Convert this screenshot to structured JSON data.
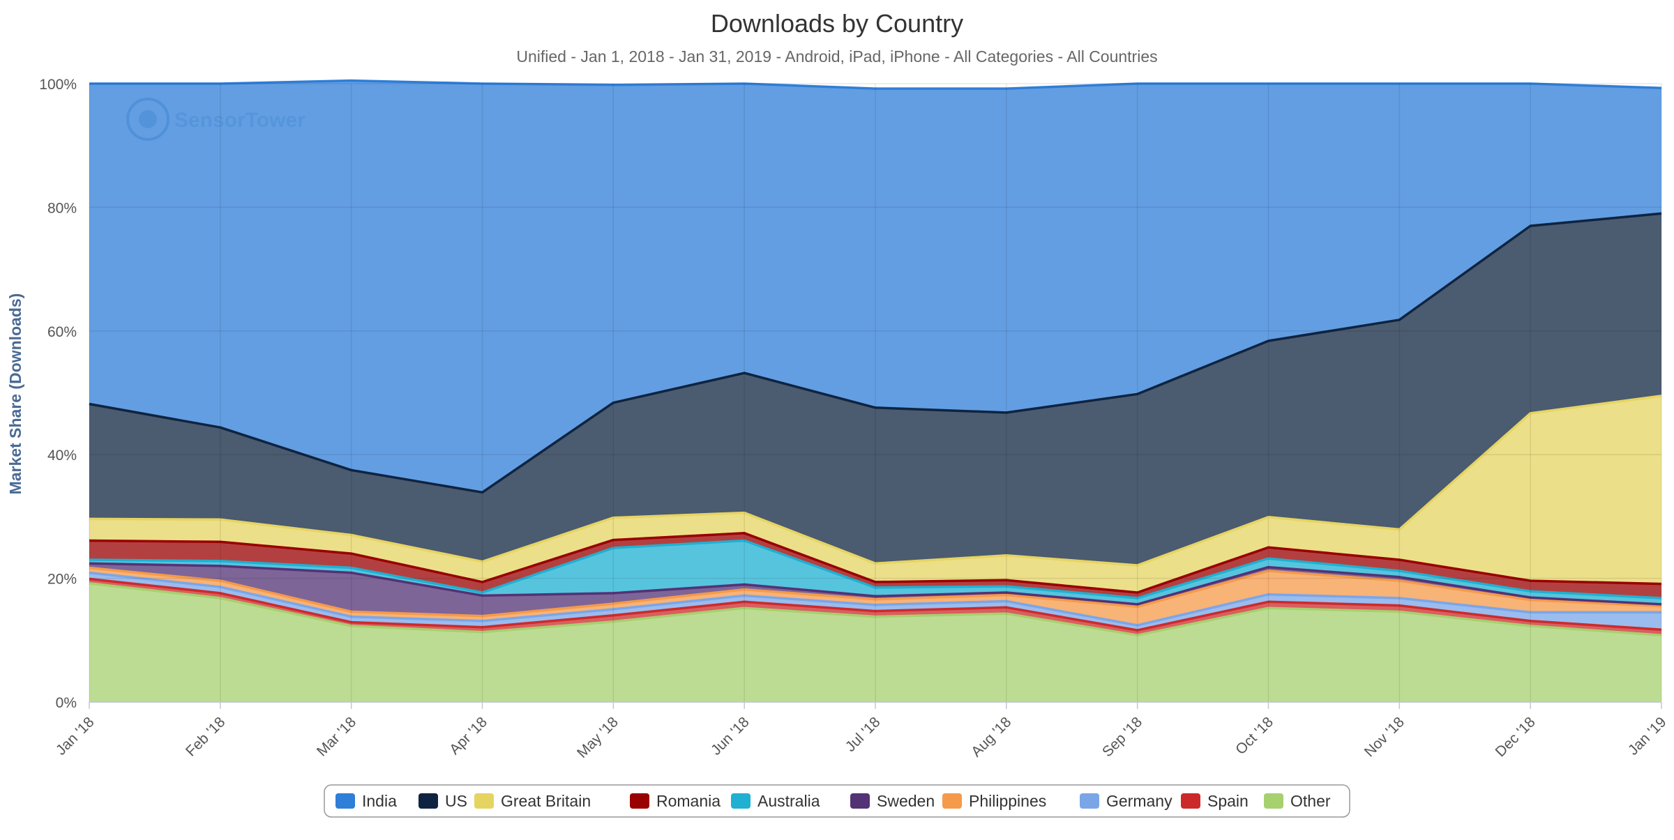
{
  "chart_data": {
    "type": "area",
    "stacked": "percent",
    "title": "Downloads by Country",
    "subtitle": "Unified - Jan 1, 2018 - Jan 31, 2019 - Android, iPad, iPhone - All Categories - All Countries",
    "xlabel": "",
    "ylabel": "Market Share (Downloads)",
    "ylim": [
      0,
      100
    ],
    "y_ticks": [
      "0%",
      "20%",
      "40%",
      "60%",
      "80%",
      "100%"
    ],
    "categories": [
      "Jan '18",
      "Feb '18",
      "Mar '18",
      "Apr '18",
      "May '18",
      "Jun '18",
      "Jul '18",
      "Aug '18",
      "Sep '18",
      "Oct '18",
      "Nov '18",
      "Dec '18",
      "Jan '19"
    ],
    "grid": true,
    "legend_position": "bottom-center",
    "watermark": "SensorTower",
    "series": [
      {
        "name": "Other",
        "color": "#a7d06f",
        "values": [
          19.2,
          16.8,
          12.3,
          11.3,
          13.0,
          15.2,
          13.8,
          14.3,
          10.8,
          15.2,
          14.6,
          12.3,
          10.8
        ]
      },
      {
        "name": "Spain",
        "color": "#cc2a2a",
        "values": [
          0.7,
          0.8,
          0.6,
          0.8,
          1.0,
          1.0,
          0.9,
          1.0,
          0.8,
          1.0,
          1.0,
          0.8,
          0.9
        ]
      },
      {
        "name": "Germany",
        "color": "#7aa6e8",
        "values": [
          1.0,
          1.0,
          0.9,
          1.0,
          1.0,
          1.0,
          1.0,
          1.0,
          0.8,
          1.2,
          1.2,
          1.4,
          2.8
        ]
      },
      {
        "name": "Philippines",
        "color": "#f59a4a",
        "values": [
          0.8,
          1.0,
          0.8,
          0.8,
          0.9,
          1.0,
          0.9,
          1.0,
          3.0,
          3.8,
          2.8,
          2.0,
          1.0
        ]
      },
      {
        "name": "Sweden",
        "color": "#533276",
        "values": [
          0.7,
          2.4,
          6.3,
          3.3,
          1.7,
          0.8,
          0.5,
          0.4,
          0.4,
          0.6,
          0.6,
          0.4,
          0.3
        ]
      },
      {
        "name": "Australia",
        "color": "#1fb0d2",
        "values": [
          0.6,
          0.8,
          0.8,
          0.5,
          7.3,
          7.1,
          1.4,
          1.0,
          1.0,
          1.4,
          1.0,
          1.0,
          1.0
        ]
      },
      {
        "name": "Romania",
        "color": "#990000",
        "values": [
          3.1,
          3.1,
          2.3,
          1.7,
          1.3,
          1.2,
          0.9,
          1.0,
          0.9,
          1.8,
          1.8,
          1.7,
          2.3
        ]
      },
      {
        "name": "Great Britain",
        "color": "#e6d462",
        "values": [
          3.5,
          3.6,
          3.0,
          3.3,
          3.6,
          3.3,
          3.0,
          4.0,
          4.4,
          4.9,
          4.9,
          27.1,
          30.4
        ]
      },
      {
        "name": "US",
        "color": "#0f2440",
        "values": [
          18.6,
          14.9,
          10.5,
          11.2,
          18.6,
          22.6,
          25.2,
          23.1,
          27.7,
          28.5,
          33.9,
          30.3,
          29.5
        ]
      },
      {
        "name": "India",
        "color": "#2f7ed8",
        "values": [
          51.8,
          55.6,
          63.0,
          66.1,
          51.4,
          46.8,
          51.6,
          52.4,
          50.2,
          41.6,
          38.2,
          23.0,
          20.3
        ]
      }
    ],
    "legend": [
      {
        "name": "India",
        "color": "#2f7ed8"
      },
      {
        "name": "US",
        "color": "#0f2440"
      },
      {
        "name": "Great Britain",
        "color": "#e6d462"
      },
      {
        "name": "Romania",
        "color": "#990000"
      },
      {
        "name": "Australia",
        "color": "#1fb0d2"
      },
      {
        "name": "Sweden",
        "color": "#533276"
      },
      {
        "name": "Philippines",
        "color": "#f59a4a"
      },
      {
        "name": "Germany",
        "color": "#7aa6e8"
      },
      {
        "name": "Spain",
        "color": "#cc2a2a"
      },
      {
        "name": "Other",
        "color": "#a7d06f"
      }
    ]
  }
}
